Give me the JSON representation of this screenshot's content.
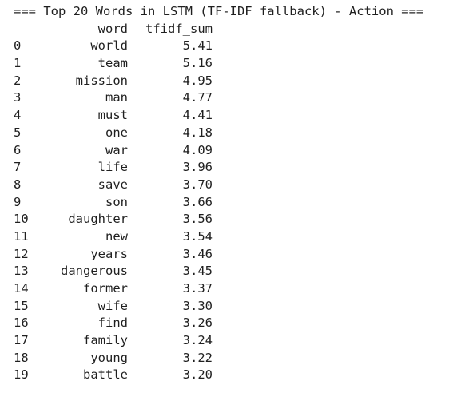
{
  "title": "=== Top 20 Words in LSTM (TF-IDF fallback) - Action ===",
  "columns": {
    "word": "word",
    "tfidf_sum": "tfidf_sum"
  },
  "rows": [
    {
      "index": "0",
      "word": "world",
      "tfidf_sum": "5.41"
    },
    {
      "index": "1",
      "word": "team",
      "tfidf_sum": "5.16"
    },
    {
      "index": "2",
      "word": "mission",
      "tfidf_sum": "4.95"
    },
    {
      "index": "3",
      "word": "man",
      "tfidf_sum": "4.77"
    },
    {
      "index": "4",
      "word": "must",
      "tfidf_sum": "4.41"
    },
    {
      "index": "5",
      "word": "one",
      "tfidf_sum": "4.18"
    },
    {
      "index": "6",
      "word": "war",
      "tfidf_sum": "4.09"
    },
    {
      "index": "7",
      "word": "life",
      "tfidf_sum": "3.96"
    },
    {
      "index": "8",
      "word": "save",
      "tfidf_sum": "3.70"
    },
    {
      "index": "9",
      "word": "son",
      "tfidf_sum": "3.66"
    },
    {
      "index": "10",
      "word": "daughter",
      "tfidf_sum": "3.56"
    },
    {
      "index": "11",
      "word": "new",
      "tfidf_sum": "3.54"
    },
    {
      "index": "12",
      "word": "years",
      "tfidf_sum": "3.46"
    },
    {
      "index": "13",
      "word": "dangerous",
      "tfidf_sum": "3.45"
    },
    {
      "index": "14",
      "word": "former",
      "tfidf_sum": "3.37"
    },
    {
      "index": "15",
      "word": "wife",
      "tfidf_sum": "3.30"
    },
    {
      "index": "16",
      "word": "find",
      "tfidf_sum": "3.26"
    },
    {
      "index": "17",
      "word": "family",
      "tfidf_sum": "3.24"
    },
    {
      "index": "18",
      "word": "young",
      "tfidf_sum": "3.22"
    },
    {
      "index": "19",
      "word": "battle",
      "tfidf_sum": "3.20"
    }
  ]
}
